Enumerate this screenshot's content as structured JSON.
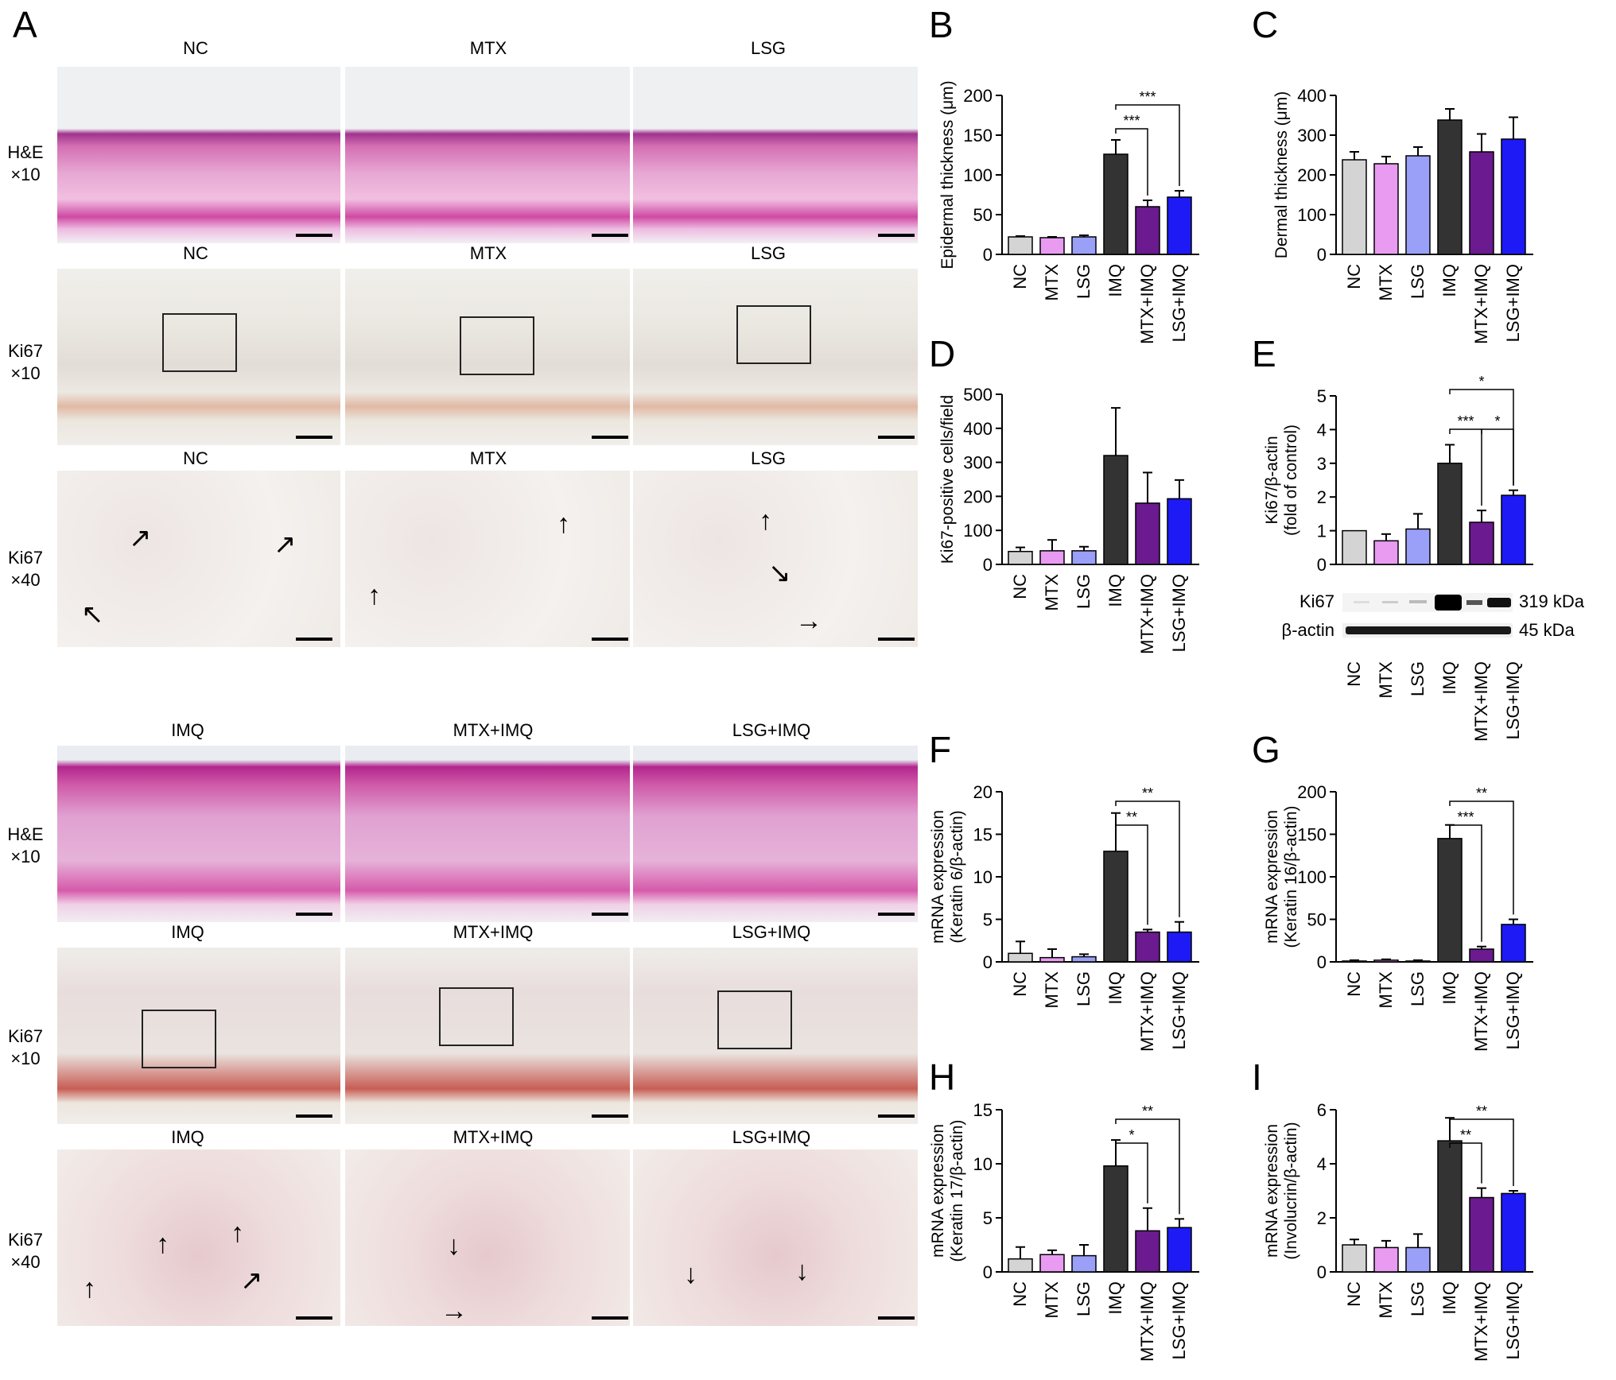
{
  "panels": {
    "A": "A",
    "B": "B",
    "C": "C",
    "D": "D",
    "E": "E",
    "F": "F",
    "G": "G",
    "H": "H",
    "I": "I"
  },
  "histology": {
    "top_columns": [
      "NC",
      "MTX",
      "LSG"
    ],
    "bottom_columns": [
      "IMQ",
      "MTX+IMQ",
      "LSG+IMQ"
    ],
    "rows": [
      {
        "stain": "H&E",
        "mag": "×10"
      },
      {
        "stain": "Ki67",
        "mag": "×10"
      },
      {
        "stain": "Ki67",
        "mag": "×40"
      }
    ]
  },
  "colors": {
    "NC": "#d4d4d4",
    "MTX": "#e89bf0",
    "LSG": "#9aa0f7",
    "IMQ": "#333333",
    "MTX+IMQ": "#6b1a8f",
    "LSG+IMQ": "#1d1af5"
  },
  "western": {
    "bands": [
      {
        "name": "Ki67",
        "size": "319 kDa"
      },
      {
        "name": "β-actin",
        "size": "45 kDa"
      }
    ]
  },
  "chart_data": [
    {
      "id": "B",
      "type": "bar",
      "categories": [
        "NC",
        "MTX",
        "LSG",
        "IMQ",
        "MTX+IMQ",
        "LSG+IMQ"
      ],
      "values": [
        22,
        21,
        22,
        126,
        60,
        72
      ],
      "errors": [
        1,
        1,
        2,
        18,
        8,
        8
      ],
      "ylabel": "Epidermal thickness (μm)",
      "ylim": [
        0,
        200
      ],
      "ticks": [
        0,
        50,
        100,
        150,
        200
      ],
      "sig": [
        {
          "from": 3,
          "to": 4,
          "label": "***",
          "level": 0
        },
        {
          "from": 3,
          "to": 5,
          "label": "***",
          "level": 1
        }
      ]
    },
    {
      "id": "C",
      "type": "bar",
      "categories": [
        "NC",
        "MTX",
        "LSG",
        "IMQ",
        "MTX+IMQ",
        "LSG+IMQ"
      ],
      "values": [
        238,
        228,
        248,
        338,
        258,
        290
      ],
      "errors": [
        20,
        18,
        22,
        28,
        45,
        55
      ],
      "ylabel": "Dermal thickness (μm)",
      "ylim": [
        0,
        400
      ],
      "ticks": [
        0,
        100,
        200,
        300,
        400
      ],
      "sig": []
    },
    {
      "id": "D",
      "type": "bar",
      "categories": [
        "NC",
        "MTX",
        "LSG",
        "IMQ",
        "MTX+IMQ",
        "LSG+IMQ"
      ],
      "values": [
        38,
        40,
        40,
        320,
        180,
        193
      ],
      "errors": [
        12,
        32,
        12,
        140,
        90,
        55
      ],
      "ylabel": "Ki67-positive cells/field",
      "ylim": [
        0,
        500
      ],
      "ticks": [
        0,
        100,
        200,
        300,
        400,
        500
      ],
      "sig": []
    },
    {
      "id": "E",
      "type": "bar",
      "categories": [
        "NC",
        "MTX",
        "LSG",
        "IMQ",
        "MTX+IMQ",
        "LSG+IMQ"
      ],
      "values": [
        1.0,
        0.7,
        1.05,
        3.0,
        1.25,
        2.05
      ],
      "errors": [
        0,
        0.2,
        0.45,
        0.55,
        0.35,
        0.15
      ],
      "ylabel": "Ki67/β-actin\n(fold of control)",
      "ylim": [
        0,
        5
      ],
      "ticks": [
        0,
        1,
        2,
        3,
        4,
        5
      ],
      "sig": [
        {
          "from": 3,
          "to": 4,
          "label": "***",
          "level": 0
        },
        {
          "from": 4,
          "to": 5,
          "label": "*",
          "level": 0
        },
        {
          "from": 3,
          "to": 5,
          "label": "*",
          "level": 1
        }
      ]
    },
    {
      "id": "F",
      "type": "bar",
      "categories": [
        "NC",
        "MTX",
        "LSG",
        "IMQ",
        "MTX+IMQ",
        "LSG+IMQ"
      ],
      "values": [
        1.0,
        0.5,
        0.6,
        13.0,
        3.5,
        3.5
      ],
      "errors": [
        1.4,
        1.0,
        0.3,
        4.5,
        0.3,
        1.2
      ],
      "ylabel": "mRNA expression\n(Keratin 6/β-actin)",
      "ylim": [
        0,
        20
      ],
      "ticks": [
        0,
        5,
        10,
        15,
        20
      ],
      "sig": [
        {
          "from": 3,
          "to": 4,
          "label": "**",
          "level": 0
        },
        {
          "from": 3,
          "to": 5,
          "label": "**",
          "level": 1
        }
      ]
    },
    {
      "id": "G",
      "type": "bar",
      "categories": [
        "NC",
        "MTX",
        "LSG",
        "IMQ",
        "MTX+IMQ",
        "LSG+IMQ"
      ],
      "values": [
        1,
        2,
        1,
        145,
        15,
        44
      ],
      "errors": [
        1,
        1,
        1,
        16,
        3,
        6
      ],
      "ylabel": "mRNA expression\n(Keratin 16/β-actin)",
      "ylim": [
        0,
        200
      ],
      "ticks": [
        0,
        50,
        100,
        150,
        200
      ],
      "sig": [
        {
          "from": 3,
          "to": 4,
          "label": "***",
          "level": 0
        },
        {
          "from": 3,
          "to": 5,
          "label": "**",
          "level": 1
        }
      ]
    },
    {
      "id": "H",
      "type": "bar",
      "categories": [
        "NC",
        "MTX",
        "LSG",
        "IMQ",
        "MTX+IMQ",
        "LSG+IMQ"
      ],
      "values": [
        1.2,
        1.6,
        1.5,
        9.8,
        3.8,
        4.1
      ],
      "errors": [
        1.1,
        0.4,
        1.0,
        2.4,
        2.1,
        0.8
      ],
      "ylabel": "mRNA expression\n(Keratin 17/β-actin)",
      "ylim": [
        0,
        15
      ],
      "ticks": [
        0,
        5,
        10,
        15
      ],
      "sig": [
        {
          "from": 3,
          "to": 4,
          "label": "*",
          "level": 0
        },
        {
          "from": 3,
          "to": 5,
          "label": "**",
          "level": 1
        }
      ]
    },
    {
      "id": "I",
      "type": "bar",
      "categories": [
        "NC",
        "MTX",
        "LSG",
        "IMQ",
        "MTX+IMQ",
        "LSG+IMQ"
      ],
      "values": [
        1.0,
        0.9,
        0.9,
        4.85,
        2.75,
        2.9
      ],
      "errors": [
        0.2,
        0.25,
        0.5,
        0.85,
        0.35,
        0.1
      ],
      "ylabel": "mRNA expression\n(Involucrin/β-actin)",
      "ylim": [
        0,
        6
      ],
      "ticks": [
        0,
        2,
        4,
        6
      ],
      "sig": [
        {
          "from": 3,
          "to": 4,
          "label": "**",
          "level": 0
        },
        {
          "from": 3,
          "to": 5,
          "label": "**",
          "level": 1
        }
      ]
    }
  ]
}
